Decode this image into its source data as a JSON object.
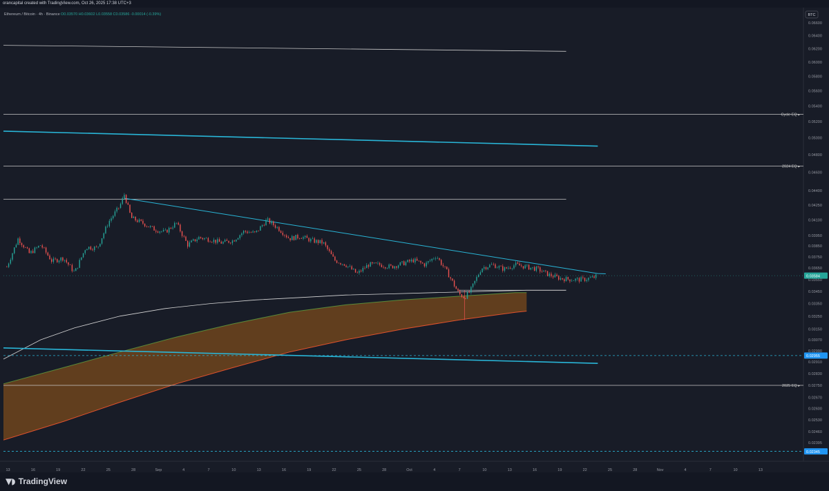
{
  "header": {
    "attribution": "orancapital created with TradingView.com, Oct 26, 2025 17:38 UTC+3"
  },
  "legend": {
    "symbol": "Ethereum / Bitcoin · 4h · Binance",
    "ohlc": "O0.03570  H0.03602  L0.03558  C0.03586  -0.00014 (-0.39%)"
  },
  "currency_button": "BTC",
  "footer": {
    "logo_text": "TradingView"
  },
  "colors": {
    "background": "#181c27",
    "up": "#26a69a",
    "down": "#ef5350",
    "trendline": "#29b6d8",
    "level": "#9aa0aa",
    "band_fill": "#7a4a1c",
    "band_top": "#5a8a3a",
    "band_bottom": "#e0522d"
  },
  "chart_data": {
    "type": "candlestick",
    "timeframe": "4h",
    "pair": "ETH/BTC",
    "exchange": "Binance",
    "y_axis": {
      "scale": "log",
      "range": [
        0.0232,
        0.068
      ],
      "ticks": [
        "0.06600",
        "0.06400",
        "0.06200",
        "0.06000",
        "0.05800",
        "0.05600",
        "0.05400",
        "0.05200",
        "0.05000",
        "0.04800",
        "0.04600",
        "0.04400",
        "0.04250",
        "0.04100",
        "0.03950",
        "0.03850",
        "0.03750",
        "0.03650",
        "0.03550",
        "0.03450",
        "0.03350",
        "0.03250",
        "0.03150",
        "0.03070",
        "0.02990",
        "0.02910",
        "0.02830",
        "0.02750",
        "0.02670",
        "0.02600",
        "0.02530",
        "0.02460",
        "0.02395"
      ]
    },
    "x_axis": {
      "ticks": [
        "13",
        "16",
        "19",
        "22",
        "25",
        "28",
        "Sep",
        "4",
        "7",
        "10",
        "13",
        "16",
        "19",
        "22",
        "25",
        "28",
        "Oct",
        "4",
        "7",
        "10",
        "13",
        "16",
        "19",
        "22",
        "25",
        "28",
        "Nov",
        "4",
        "7",
        "10",
        "13"
      ]
    },
    "horizontal_levels": [
      {
        "label": "Cycle EQ",
        "price": 0.0529
      },
      {
        "label": "2024 EQ",
        "price": 0.0467
      },
      {
        "label": "2025 EQ",
        "price": 0.0275
      }
    ],
    "price_tags": [
      {
        "label": "0.03584",
        "price": 0.03584,
        "kind": "last"
      },
      {
        "label": "0.02955",
        "price": 0.02955,
        "kind": "dashed"
      },
      {
        "label": "0.02345",
        "price": 0.02345,
        "kind": "dashed"
      }
    ],
    "path": [
      [
        0,
        0.0366
      ],
      [
        1,
        0.0392
      ],
      [
        2,
        0.0378
      ],
      [
        3,
        0.0386
      ],
      [
        4,
        0.0371
      ],
      [
        5,
        0.0374
      ],
      [
        6,
        0.0361
      ],
      [
        7,
        0.0384
      ],
      [
        8,
        0.0383
      ],
      [
        9,
        0.0408
      ],
      [
        10,
        0.0424
      ],
      [
        10.4,
        0.0436
      ],
      [
        11,
        0.0412
      ],
      [
        12,
        0.0407
      ],
      [
        13,
        0.0401
      ],
      [
        14,
        0.0398
      ],
      [
        15,
        0.0407
      ],
      [
        16,
        0.0386
      ],
      [
        17,
        0.0393
      ],
      [
        18,
        0.0391
      ],
      [
        19,
        0.0388
      ],
      [
        20,
        0.039
      ],
      [
        21,
        0.0399
      ],
      [
        22,
        0.0397
      ],
      [
        23,
        0.041
      ],
      [
        24,
        0.0402
      ],
      [
        25,
        0.0392
      ],
      [
        26,
        0.0394
      ],
      [
        27,
        0.039
      ],
      [
        28,
        0.0388
      ],
      [
        29,
        0.0372
      ],
      [
        30,
        0.0368
      ],
      [
        31,
        0.036
      ],
      [
        32,
        0.0368
      ],
      [
        33,
        0.0368
      ],
      [
        34,
        0.0366
      ],
      [
        35,
        0.0369
      ],
      [
        36,
        0.0372
      ],
      [
        37,
        0.0368
      ],
      [
        38,
        0.0376
      ],
      [
        39,
        0.0361
      ],
      [
        40,
        0.0343
      ],
      [
        40.5,
        0.034
      ],
      [
        41,
        0.0345
      ],
      [
        42,
        0.0365
      ],
      [
        43,
        0.0368
      ],
      [
        44,
        0.0364
      ],
      [
        45,
        0.0368
      ],
      [
        46,
        0.0366
      ],
      [
        47,
        0.0364
      ],
      [
        48,
        0.0359
      ],
      [
        49,
        0.0356
      ],
      [
        50,
        0.0355
      ],
      [
        51,
        0.0355
      ],
      [
        52,
        0.0357
      ],
      [
        52.3,
        0.03586
      ]
    ],
    "overlays": {
      "descending_resistance": [
        [
          10.4,
          0.0432
        ],
        [
          52.3,
          0.03602
        ],
        [
          53,
          0.036
        ]
      ],
      "upper_channel_line": [
        [
          -0.3,
          0.0508
        ],
        [
          52.3,
          0.049
        ]
      ],
      "lower_channel_line": [
        [
          -0.3,
          0.0301
        ],
        [
          52.3,
          0.029
        ]
      ],
      "top_level_line": [
        [
          -0.3,
          0.0625
        ],
        [
          49.5,
          0.0616
        ]
      ],
      "range_high_line": [
        [
          -0.3,
          0.0431
        ],
        [
          49.5,
          0.0431
        ]
      ],
      "range_low_line": [
        [
          40,
          0.0346
        ],
        [
          49.5,
          0.0346
        ]
      ],
      "white_moving_average": [
        [
          -0.3,
          0.0293
        ],
        [
          3,
          0.0307
        ],
        [
          6,
          0.0316
        ],
        [
          10,
          0.0325
        ],
        [
          14,
          0.0331
        ],
        [
          18,
          0.0335
        ],
        [
          22,
          0.0338
        ],
        [
          26,
          0.034
        ],
        [
          30,
          0.0342
        ],
        [
          34,
          0.0343
        ],
        [
          38,
          0.0344
        ],
        [
          42,
          0.0345
        ],
        [
          46,
          0.0346
        ],
        [
          49.5,
          0.0346
        ]
      ],
      "band_top": [
        [
          -0.3,
          0.0276
        ],
        [
          5,
          0.0287
        ],
        [
          10,
          0.0298
        ],
        [
          15,
          0.0309
        ],
        [
          20,
          0.0319
        ],
        [
          25,
          0.0328
        ],
        [
          30,
          0.0334
        ],
        [
          35,
          0.0338
        ],
        [
          40,
          0.0341
        ],
        [
          45,
          0.0344
        ],
        [
          46,
          0.0344
        ]
      ],
      "band_bottom": [
        [
          -0.3,
          0.0241
        ],
        [
          5,
          0.0252
        ],
        [
          10,
          0.0264
        ],
        [
          15,
          0.0276
        ],
        [
          20,
          0.0287
        ],
        [
          25,
          0.0298
        ],
        [
          30,
          0.0307
        ],
        [
          35,
          0.0315
        ],
        [
          40,
          0.0322
        ],
        [
          45,
          0.0328
        ],
        [
          46,
          0.0329
        ]
      ]
    }
  }
}
